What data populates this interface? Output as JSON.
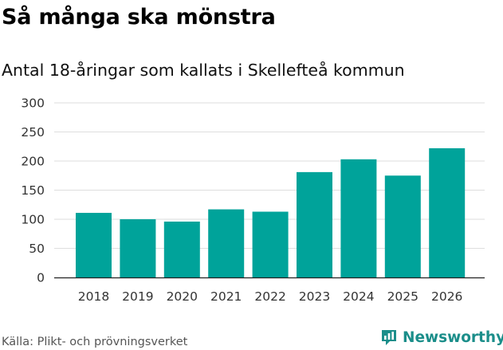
{
  "chart_data": {
    "type": "bar",
    "title": "Så många ska mönstra",
    "subtitle": "Antal 18-åringar som kallats i Skellefteå kommun",
    "categories": [
      "2018",
      "2019",
      "2020",
      "2021",
      "2022",
      "2023",
      "2024",
      "2025",
      "2026"
    ],
    "values": [
      111,
      100,
      96,
      117,
      113,
      181,
      203,
      175,
      222
    ],
    "ylim": [
      0,
      300
    ],
    "yticks": [
      "0",
      "50",
      "100",
      "150",
      "200",
      "250",
      "300"
    ],
    "xlabel": "",
    "ylabel": "",
    "grid": true,
    "bar_color": "#00a39a"
  },
  "footer": {
    "source": "Källa: Plikt- och prövningsverket",
    "brand_name": "Newsworthy",
    "brand_icon": "newsworthy-logo-icon",
    "brand_color": "#1b8e8a"
  }
}
